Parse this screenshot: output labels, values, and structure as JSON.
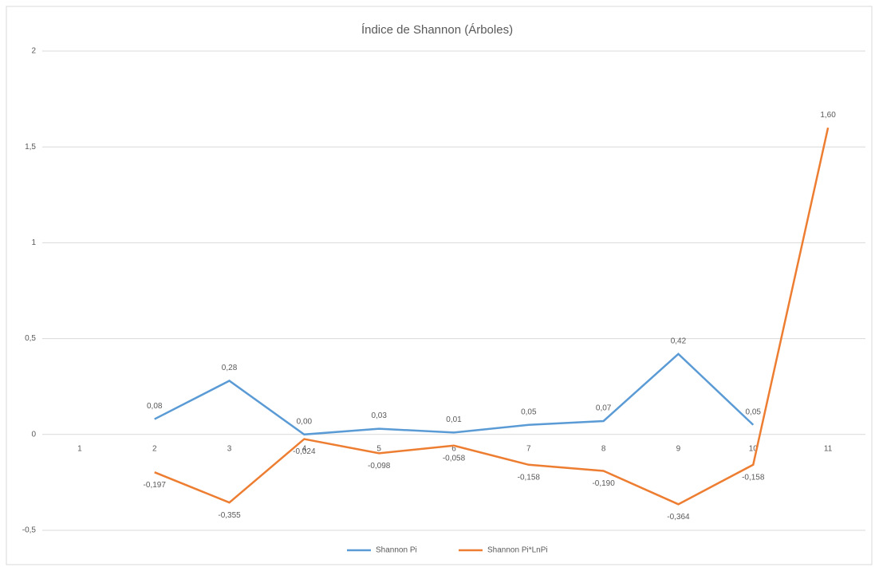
{
  "chart_data": {
    "type": "line",
    "title": "Índice de Shannon (Árboles)",
    "categories": [
      "1",
      "2",
      "3",
      "4",
      "5",
      "6",
      "7",
      "8",
      "9",
      "10",
      "11"
    ],
    "series": [
      {
        "name": "Shannon Pi",
        "color": "#5b9bd5",
        "values": [
          null,
          0.08,
          0.28,
          0.0,
          0.03,
          0.01,
          0.05,
          0.07,
          0.42,
          0.05,
          null
        ],
        "value_labels": [
          null,
          "0,08",
          "0,28",
          "0,00",
          "0,03",
          "0,01",
          "0,05",
          "0,07",
          "0,42",
          "0,05",
          null
        ]
      },
      {
        "name": "Shannon Pi*LnPi",
        "color": "#ed7d31",
        "values": [
          null,
          -0.197,
          -0.355,
          -0.024,
          -0.098,
          -0.058,
          -0.158,
          -0.19,
          -0.364,
          -0.158,
          1.6
        ],
        "value_labels": [
          null,
          "-0,197",
          "-0,355",
          "-0,024",
          "-0,098",
          "-0,058",
          "-0,158",
          "-0,190",
          "-0,364",
          "-0,158",
          "1,60"
        ]
      }
    ],
    "ylim": [
      -0.5,
      2
    ],
    "yticks": [
      {
        "value": -0.5,
        "label": "-0,5"
      },
      0,
      {
        "value": 0.5,
        "label": "0,5"
      },
      1,
      {
        "value": 1.5,
        "label": "1,5"
      },
      2
    ],
    "grid": true,
    "legend": "bottom"
  }
}
